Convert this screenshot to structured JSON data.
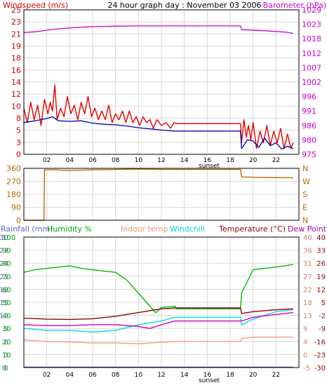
{
  "colors": {
    "grid": "#d8d8d8",
    "frame": "#000000",
    "windspeed": "#cc0000",
    "windgust": "#e60000",
    "windavg": "#0000aa",
    "barometer": "#cc00cc",
    "winddir": "#b86b00",
    "rainfall": "#5050cc",
    "humidity": "#00bb00",
    "indoor": "#f0a080",
    "windchill": "#00dddd",
    "temperature": "#990000",
    "dewpoint": "#cc00cc",
    "rain_axis": "#6060cc",
    "hum_axis": "#00aa00",
    "indoor_axis": "#cc8866",
    "temp_axis": "#990000",
    "dew_axis": "#aa00aa"
  },
  "chart_data": [
    {
      "type": "line",
      "title": "24 hour graph day : November 03 2006",
      "left_axis_label": "Windspeed (m/s)",
      "right_axis_label": "Barometer (hPa)",
      "left_ticks": [
        "25",
        "23",
        "21",
        "19",
        "18",
        "16",
        "14",
        "12",
        "10",
        "8",
        "5",
        "3",
        "0"
      ],
      "right_ticks": [
        "1029",
        "1023",
        "1018",
        "1012",
        "1007",
        "1002",
        "996",
        "991",
        "986",
        "980",
        "975"
      ],
      "x_ticks": [
        "02",
        "04",
        "06",
        "08",
        "10",
        "12",
        "14",
        "16",
        "18",
        "20",
        "22"
      ],
      "x_marker": "sunset",
      "x_range_hours": [
        0,
        24
      ],
      "left_range": [
        0,
        25
      ],
      "right_range": [
        975,
        1029
      ],
      "series": [
        {
          "key": "barometer",
          "axis": "right",
          "points": [
            [
              0,
              1020.5
            ],
            [
              1,
              1020.8
            ],
            [
              2,
              1021.4
            ],
            [
              3,
              1021.9
            ],
            [
              4,
              1022.2
            ],
            [
              5,
              1022.5
            ],
            [
              6,
              1022.7
            ],
            [
              8,
              1022.9
            ],
            [
              10,
              1023.0
            ],
            [
              13,
              1023.0
            ],
            [
              18.9,
              1023.0
            ],
            [
              19,
              1021.6
            ],
            [
              21,
              1021.2
            ],
            [
              23,
              1020.6
            ],
            [
              23.5,
              1020.2
            ]
          ]
        },
        {
          "key": "windgust",
          "axis": "left",
          "points": [
            [
              0,
              8
            ],
            [
              0.3,
              5.5
            ],
            [
              0.6,
              9
            ],
            [
              0.9,
              6
            ],
            [
              1.2,
              8.5
            ],
            [
              1.5,
              5
            ],
            [
              1.8,
              9.5
            ],
            [
              2.1,
              7
            ],
            [
              2.3,
              9
            ],
            [
              2.5,
              7.5
            ],
            [
              2.7,
              12
            ],
            [
              2.9,
              6
            ],
            [
              3.2,
              8
            ],
            [
              3.5,
              6.5
            ],
            [
              3.8,
              10
            ],
            [
              4.1,
              7
            ],
            [
              4.4,
              8.5
            ],
            [
              4.7,
              6
            ],
            [
              5,
              9
            ],
            [
              5.3,
              7
            ],
            [
              5.6,
              10
            ],
            [
              5.9,
              6.5
            ],
            [
              6.2,
              8
            ],
            [
              6.5,
              6
            ],
            [
              6.8,
              7.5
            ],
            [
              7.1,
              6
            ],
            [
              7.4,
              8.5
            ],
            [
              7.7,
              5.5
            ],
            [
              8,
              7
            ],
            [
              8.3,
              6
            ],
            [
              8.6,
              7.5
            ],
            [
              8.9,
              5.5
            ],
            [
              9.2,
              7.5
            ],
            [
              9.5,
              5.5
            ],
            [
              9.8,
              6.5
            ],
            [
              10.1,
              5
            ],
            [
              10.4,
              6.5
            ],
            [
              10.7,
              5.5
            ],
            [
              11,
              6
            ],
            [
              11.3,
              4.5
            ],
            [
              11.6,
              6
            ],
            [
              12,
              5
            ],
            [
              12.4,
              5.5
            ],
            [
              12.8,
              4.5
            ],
            [
              13.1,
              5.5
            ],
            [
              13.3,
              5.3
            ],
            [
              18.9,
              5.3
            ],
            [
              19,
              2
            ],
            [
              19.2,
              6
            ],
            [
              19.4,
              3
            ],
            [
              19.6,
              5
            ],
            [
              19.8,
              2.5
            ],
            [
              20,
              5.5
            ],
            [
              20.3,
              1
            ],
            [
              20.6,
              4
            ],
            [
              20.9,
              2
            ],
            [
              21.2,
              5
            ],
            [
              21.5,
              1.5
            ],
            [
              21.8,
              4
            ],
            [
              22.1,
              2
            ],
            [
              22.4,
              4.5
            ],
            [
              22.7,
              1
            ],
            [
              23,
              3.5
            ],
            [
              23.3,
              1
            ],
            [
              23.5,
              2
            ]
          ]
        },
        {
          "key": "windavg",
          "axis": "left",
          "points": [
            [
              0,
              5.5
            ],
            [
              1,
              5.8
            ],
            [
              2,
              6.2
            ],
            [
              2.5,
              6.5
            ],
            [
              3,
              5.8
            ],
            [
              4,
              5.7
            ],
            [
              5,
              5.8
            ],
            [
              6,
              5.4
            ],
            [
              7,
              5.2
            ],
            [
              8,
              5.1
            ],
            [
              9,
              4.9
            ],
            [
              10,
              4.6
            ],
            [
              11,
              4.4
            ],
            [
              12,
              4.2
            ],
            [
              13.2,
              4
            ],
            [
              18.9,
              4
            ],
            [
              19,
              1
            ],
            [
              19.5,
              2.5
            ],
            [
              20,
              2.3
            ],
            [
              20.5,
              1.2
            ],
            [
              21,
              2.8
            ],
            [
              21.5,
              1.5
            ],
            [
              22,
              2
            ],
            [
              22.5,
              0.9
            ],
            [
              23,
              1.4
            ],
            [
              23.5,
              1
            ]
          ]
        }
      ]
    },
    {
      "type": "line",
      "left_ticks": [
        "360",
        "270",
        "180",
        "90",
        "0"
      ],
      "right_ticks": [
        "N",
        "W",
        "S",
        "E",
        "N"
      ],
      "left_range": [
        0,
        360
      ],
      "series": [
        {
          "key": "winddir",
          "axis": "left",
          "points": [
            [
              0,
              0
            ],
            [
              1.75,
              0
            ],
            [
              1.8,
              350
            ],
            [
              2.5,
              350
            ],
            [
              4,
              345
            ],
            [
              6,
              350
            ],
            [
              8,
              352
            ],
            [
              10,
              355
            ],
            [
              12,
              352
            ],
            [
              13.3,
              352
            ],
            [
              18.9,
              352
            ],
            [
              19,
              300
            ],
            [
              20,
              298
            ],
            [
              22,
              296
            ],
            [
              23.5,
              295
            ]
          ]
        }
      ]
    },
    {
      "type": "line",
      "legend": [
        "Rainfall (mm)",
        "Humidity %",
        "Indoor temp",
        "Windchill",
        "Temperature (°C)",
        "Dew Point"
      ],
      "rain_ticks": [
        "30",
        "27",
        "24",
        "21",
        "18",
        "15",
        "12",
        "9",
        "6",
        "3",
        "0"
      ],
      "hum_ticks": [
        "100",
        "90",
        "80",
        "70",
        "60",
        "50",
        "40",
        "30",
        "20",
        "10",
        "0"
      ],
      "indoor_ticks": [
        "40",
        "36",
        "31",
        "27",
        "22",
        "18",
        "13",
        "9",
        "4",
        "0",
        "-5"
      ],
      "temp_ticks": [
        "40",
        "33",
        "26",
        "19",
        "12",
        "5",
        "-2",
        "-9",
        "-16",
        "-23",
        "-30"
      ],
      "x_ticks": [
        "02",
        "04",
        "06",
        "08",
        "10",
        "12",
        "14",
        "16",
        "18",
        "20",
        "22"
      ],
      "x_marker": "sunset",
      "hum_range": [
        0,
        100
      ],
      "temp_range": [
        -30,
        40
      ],
      "indoor_range": [
        -5,
        40
      ],
      "series": [
        {
          "key": "humidity",
          "axis": "hum",
          "points": [
            [
              0,
              73
            ],
            [
              1,
              75
            ],
            [
              2,
              76
            ],
            [
              3,
              77
            ],
            [
              4,
              78
            ],
            [
              5,
              76
            ],
            [
              6,
              75
            ],
            [
              7,
              74
            ],
            [
              8,
              73
            ],
            [
              9,
              67
            ],
            [
              10,
              57
            ],
            [
              11,
              47
            ],
            [
              11.5,
              42
            ],
            [
              12,
              46
            ],
            [
              13.2,
              47
            ],
            [
              13.3,
              45
            ],
            [
              18.9,
              45
            ],
            [
              19,
              57
            ],
            [
              20,
              75
            ],
            [
              21,
              76
            ],
            [
              22,
              77
            ],
            [
              23.5,
              79
            ]
          ]
        },
        {
          "key": "temperature",
          "axis": "temp",
          "points": [
            [
              0,
              -3.5
            ],
            [
              2,
              -4
            ],
            [
              4,
              -4.2
            ],
            [
              6,
              -3.8
            ],
            [
              8,
              -2.5
            ],
            [
              10,
              -0.5
            ],
            [
              12,
              1.5
            ],
            [
              13.3,
              2
            ],
            [
              18.9,
              2
            ],
            [
              19,
              -1
            ],
            [
              20,
              0
            ],
            [
              22,
              1
            ],
            [
              23.5,
              1.5
            ]
          ]
        },
        {
          "key": "windchill",
          "axis": "temp",
          "points": [
            [
              0,
              -9
            ],
            [
              2,
              -10
            ],
            [
              4,
              -10
            ],
            [
              6,
              -11
            ],
            [
              8,
              -10
            ],
            [
              10,
              -7
            ],
            [
              12,
              -5
            ],
            [
              13.2,
              -3
            ],
            [
              18.9,
              -3
            ],
            [
              19,
              -7
            ],
            [
              20,
              -4
            ],
            [
              21,
              -2
            ],
            [
              22,
              0
            ],
            [
              23.5,
              1
            ]
          ]
        },
        {
          "key": "dewpoint",
          "axis": "temp",
          "points": [
            [
              0,
              -7
            ],
            [
              2,
              -7.5
            ],
            [
              4,
              -7.5
            ],
            [
              6,
              -7
            ],
            [
              8,
              -7
            ],
            [
              10,
              -8
            ],
            [
              11,
              -9
            ],
            [
              12,
              -7
            ],
            [
              13.2,
              -5
            ],
            [
              18.9,
              -5
            ],
            [
              19,
              -5
            ],
            [
              20,
              -3
            ],
            [
              22,
              -1.5
            ],
            [
              23.5,
              -0.5
            ]
          ]
        },
        {
          "key": "indoor",
          "axis": "indoor",
          "points": [
            [
              0,
              4.5
            ],
            [
              2,
              4
            ],
            [
              4,
              3.8
            ],
            [
              6,
              3.5
            ],
            [
              8,
              3.5
            ],
            [
              10,
              3.2
            ],
            [
              12,
              3.7
            ],
            [
              13.2,
              4
            ],
            [
              18.9,
              4
            ],
            [
              19,
              5
            ],
            [
              20,
              5.5
            ],
            [
              22,
              5.5
            ],
            [
              23.5,
              5.5
            ]
          ]
        },
        {
          "key": "rainfall",
          "axis": "hum",
          "points": [
            [
              0,
              0.3
            ],
            [
              23.5,
              0.3
            ]
          ]
        }
      ]
    }
  ]
}
